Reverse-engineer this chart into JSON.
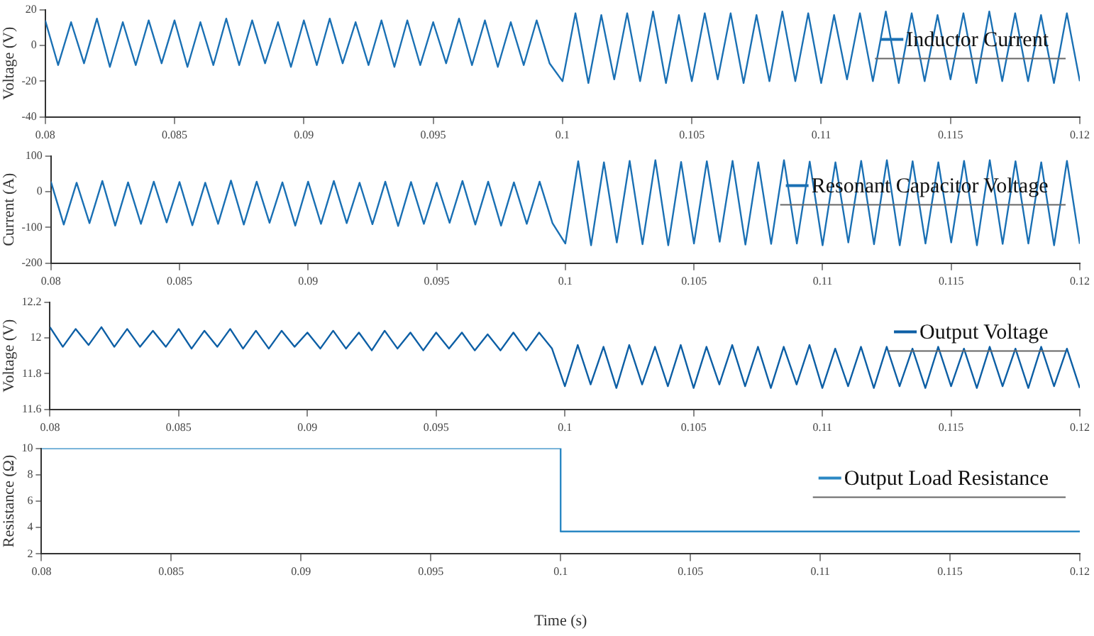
{
  "chart_data": [
    {
      "type": "line",
      "ylabel": "Voltage (V)",
      "legend": "top right",
      "xlim": [
        0.08,
        0.12
      ],
      "xticks": [
        0.08,
        0.085,
        0.09,
        0.095,
        0.1,
        0.105,
        0.11,
        0.115,
        0.12
      ],
      "ylim": [
        -40,
        20
      ],
      "yticks": [
        -40,
        -20,
        0,
        20
      ],
      "x": [
        0.08,
        0.0805,
        0.081,
        0.0815,
        0.082,
        0.0825,
        0.083,
        0.0835,
        0.084,
        0.0845,
        0.085,
        0.0855,
        0.086,
        0.0865,
        0.087,
        0.0875,
        0.088,
        0.0885,
        0.089,
        0.0895,
        0.09,
        0.0905,
        0.091,
        0.0915,
        0.092,
        0.0925,
        0.093,
        0.0935,
        0.094,
        0.0945,
        0.095,
        0.0955,
        0.096,
        0.0965,
        0.097,
        0.0975,
        0.098,
        0.0985,
        0.099,
        0.0995,
        0.1,
        0.1005,
        0.101,
        0.1015,
        0.102,
        0.1025,
        0.103,
        0.1035,
        0.104,
        0.1045,
        0.105,
        0.1055,
        0.106,
        0.1065,
        0.107,
        0.1075,
        0.108,
        0.1085,
        0.109,
        0.1095,
        0.11,
        0.1105,
        0.111,
        0.1115,
        0.112,
        0.1125,
        0.113,
        0.1135,
        0.114,
        0.1145,
        0.115,
        0.1155,
        0.116,
        0.1165,
        0.117,
        0.1175,
        0.118,
        0.1185,
        0.119,
        0.1195,
        0.12
      ],
      "series": [
        {
          "name": "Inductor Current",
          "color": "#1a70b4",
          "values": [
            14,
            -11,
            13,
            -10,
            15,
            -12,
            13,
            -11,
            14,
            -10,
            14,
            -12,
            13,
            -11,
            15,
            -11,
            14,
            -10,
            13,
            -12,
            14,
            -11,
            15,
            -10,
            13,
            -11,
            14,
            -12,
            14,
            -11,
            13,
            -10,
            15,
            -11,
            14,
            -12,
            13,
            -11,
            14,
            -10,
            -20,
            18,
            -21,
            17,
            -19,
            18,
            -20,
            19,
            -21,
            17,
            -20,
            18,
            -19,
            18,
            -21,
            17,
            -20,
            19,
            -20,
            18,
            -21,
            17,
            -19,
            18,
            -20,
            19,
            -21,
            18,
            -20,
            17,
            -19,
            18,
            -21,
            19,
            -20,
            18,
            -20,
            17,
            -21,
            18,
            -20
          ]
        }
      ]
    },
    {
      "type": "line",
      "ylabel": "Current (A)",
      "legend": "top right",
      "xlim": [
        0.08,
        0.12
      ],
      "xticks": [
        0.08,
        0.085,
        0.09,
        0.095,
        0.1,
        0.105,
        0.11,
        0.115,
        0.12
      ],
      "ylim": [
        -200,
        100
      ],
      "yticks": [
        -200,
        -100,
        0,
        100
      ],
      "x": [
        0.08,
        0.0805,
        0.081,
        0.0815,
        0.082,
        0.0825,
        0.083,
        0.0835,
        0.084,
        0.0845,
        0.085,
        0.0855,
        0.086,
        0.0865,
        0.087,
        0.0875,
        0.088,
        0.0885,
        0.089,
        0.0895,
        0.09,
        0.0905,
        0.091,
        0.0915,
        0.092,
        0.0925,
        0.093,
        0.0935,
        0.094,
        0.0945,
        0.095,
        0.0955,
        0.096,
        0.0965,
        0.097,
        0.0975,
        0.098,
        0.0985,
        0.099,
        0.0995,
        0.1,
        0.1005,
        0.101,
        0.1015,
        0.102,
        0.1025,
        0.103,
        0.1035,
        0.104,
        0.1045,
        0.105,
        0.1055,
        0.106,
        0.1065,
        0.107,
        0.1075,
        0.108,
        0.1085,
        0.109,
        0.1095,
        0.11,
        0.1105,
        0.111,
        0.1115,
        0.112,
        0.1125,
        0.113,
        0.1135,
        0.114,
        0.1145,
        0.115,
        0.1155,
        0.116,
        0.1165,
        0.117,
        0.1175,
        0.118,
        0.1185,
        0.119,
        0.1195,
        0.12
      ],
      "series": [
        {
          "name": "Resonant Capacitor Voltage",
          "color": "#1a70b4",
          "values": [
            28,
            -92,
            25,
            -88,
            30,
            -95,
            26,
            -90,
            28,
            -86,
            27,
            -94,
            25,
            -90,
            31,
            -92,
            28,
            -87,
            26,
            -95,
            28,
            -90,
            30,
            -88,
            25,
            -91,
            28,
            -96,
            27,
            -90,
            25,
            -87,
            30,
            -92,
            28,
            -95,
            26,
            -90,
            28,
            -88,
            -145,
            85,
            -150,
            82,
            -142,
            86,
            -147,
            88,
            -150,
            83,
            -145,
            85,
            -140,
            86,
            -148,
            82,
            -146,
            88,
            -145,
            84,
            -150,
            82,
            -142,
            86,
            -147,
            88,
            -150,
            85,
            -145,
            82,
            -142,
            86,
            -150,
            88,
            -146,
            85,
            -145,
            82,
            -150,
            86,
            -146
          ]
        }
      ]
    },
    {
      "type": "line",
      "ylabel": "Voltage (V)",
      "legend": "top right",
      "xlim": [
        0.08,
        0.12
      ],
      "xticks": [
        0.08,
        0.085,
        0.09,
        0.095,
        0.1,
        0.105,
        0.11,
        0.115,
        0.12
      ],
      "ylim": [
        11.6,
        12.2
      ],
      "yticks": [
        11.6,
        11.8,
        12,
        12.2
      ],
      "x": [
        0.08,
        0.0805,
        0.081,
        0.0815,
        0.082,
        0.0825,
        0.083,
        0.0835,
        0.084,
        0.0845,
        0.085,
        0.0855,
        0.086,
        0.0865,
        0.087,
        0.0875,
        0.088,
        0.0885,
        0.089,
        0.0895,
        0.09,
        0.0905,
        0.091,
        0.0915,
        0.092,
        0.0925,
        0.093,
        0.0935,
        0.094,
        0.0945,
        0.095,
        0.0955,
        0.096,
        0.0965,
        0.097,
        0.0975,
        0.098,
        0.0985,
        0.099,
        0.0995,
        0.1,
        0.1005,
        0.101,
        0.1015,
        0.102,
        0.1025,
        0.103,
        0.1035,
        0.104,
        0.1045,
        0.105,
        0.1055,
        0.106,
        0.1065,
        0.107,
        0.1075,
        0.108,
        0.1085,
        0.109,
        0.1095,
        0.11,
        0.1105,
        0.111,
        0.1115,
        0.112,
        0.1125,
        0.113,
        0.1135,
        0.114,
        0.1145,
        0.115,
        0.1155,
        0.116,
        0.1165,
        0.117,
        0.1175,
        0.118,
        0.1185,
        0.119,
        0.1195,
        0.12
      ],
      "series": [
        {
          "name": "Output Voltage",
          "color": "#0d5fa5",
          "values": [
            12.06,
            11.95,
            12.05,
            11.96,
            12.06,
            11.95,
            12.05,
            11.95,
            12.04,
            11.95,
            12.05,
            11.94,
            12.04,
            11.95,
            12.05,
            11.94,
            12.04,
            11.94,
            12.04,
            11.95,
            12.03,
            11.94,
            12.04,
            11.94,
            12.03,
            11.93,
            12.04,
            11.94,
            12.03,
            11.93,
            12.03,
            11.94,
            12.03,
            11.93,
            12.02,
            11.93,
            12.03,
            11.93,
            12.03,
            11.94,
            11.73,
            11.96,
            11.74,
            11.95,
            11.72,
            11.96,
            11.74,
            11.95,
            11.73,
            11.96,
            11.72,
            11.95,
            11.74,
            11.96,
            11.73,
            11.95,
            11.72,
            11.95,
            11.74,
            11.96,
            11.72,
            11.94,
            11.73,
            11.95,
            11.72,
            11.95,
            11.73,
            11.94,
            11.72,
            11.95,
            11.73,
            11.94,
            11.72,
            11.95,
            11.73,
            11.94,
            11.72,
            11.95,
            11.73,
            11.94,
            11.72
          ]
        }
      ]
    },
    {
      "type": "line",
      "ylabel": "Resistance (Ω)",
      "xlabel": "Time (s)",
      "legend": "top right",
      "xlim": [
        0.08,
        0.12
      ],
      "xticks": [
        0.08,
        0.085,
        0.09,
        0.095,
        0.1,
        0.105,
        0.11,
        0.115,
        0.12
      ],
      "ylim": [
        2,
        10
      ],
      "yticks": [
        2,
        4,
        6,
        8,
        10
      ],
      "series": [
        {
          "name": "Output Load Resistance",
          "color": "#2b88c4",
          "x": [
            0.08,
            0.1,
            0.1,
            0.12
          ],
          "values": [
            10,
            10,
            3.7,
            3.7
          ]
        }
      ]
    }
  ]
}
